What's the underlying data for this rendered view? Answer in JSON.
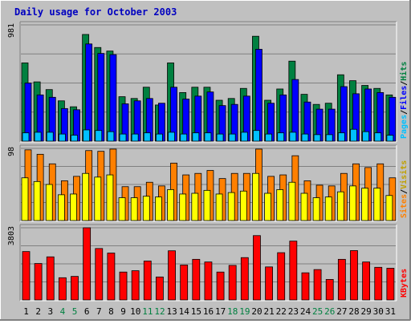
{
  "title": "Daily usage for October 2003",
  "colors": {
    "background": "#c0c0c0",
    "title": "#0000c0",
    "hits": "#008040",
    "files": "#0000ff",
    "pages": "#00c0ff",
    "visits": "#ffff00",
    "sites": "#ff8000",
    "kbytes": "#ff0000",
    "weekend_label": "#008040"
  },
  "chart_data": [
    {
      "type": "bar",
      "name": "hits-files-pages",
      "ymax_label": "981",
      "ylim": [
        0,
        981
      ],
      "categories": [
        "1",
        "2",
        "3",
        "4",
        "5",
        "6",
        "7",
        "8",
        "9",
        "10",
        "11",
        "12",
        "13",
        "14",
        "15",
        "16",
        "17",
        "18",
        "19",
        "20",
        "21",
        "22",
        "23",
        "24",
        "25",
        "26",
        "27",
        "28",
        "29",
        "30",
        "31"
      ],
      "weekend_days": [
        4,
        5,
        11,
        12,
        18,
        19,
        25,
        26
      ],
      "legend": [
        "Pages",
        "/",
        "Files",
        "/",
        "Hits"
      ],
      "series": [
        {
          "name": "Hits",
          "color": "#008040",
          "values": [
            660,
            500,
            435,
            340,
            290,
            900,
            790,
            760,
            375,
            360,
            455,
            305,
            660,
            410,
            455,
            455,
            345,
            360,
            445,
            885,
            345,
            440,
            675,
            395,
            310,
            320,
            560,
            510,
            470,
            445,
            390
          ]
        },
        {
          "name": "Files",
          "color": "#0000ff",
          "values": [
            490,
            390,
            370,
            275,
            265,
            820,
            740,
            730,
            315,
            340,
            360,
            320,
            455,
            355,
            380,
            415,
            300,
            310,
            380,
            775,
            320,
            390,
            520,
            330,
            270,
            270,
            460,
            400,
            440,
            410,
            370
          ]
        },
        {
          "name": "Pages",
          "color": "#00c0ff",
          "values": [
            70,
            75,
            75,
            60,
            50,
            95,
            90,
            80,
            60,
            60,
            70,
            60,
            75,
            60,
            70,
            70,
            60,
            60,
            75,
            90,
            60,
            70,
            75,
            60,
            55,
            55,
            70,
            100,
            80,
            70,
            50
          ]
        }
      ]
    },
    {
      "type": "bar",
      "name": "visits-sites",
      "ymax_label": "98",
      "ylim": [
        0,
        98
      ],
      "legend": [
        "Sites",
        "/",
        "Visits"
      ],
      "series": [
        {
          "name": "Sites",
          "color": "#ff8000",
          "values": [
            96,
            90,
            77,
            54,
            60,
            95,
            94,
            97,
            46,
            46,
            52,
            47,
            78,
            62,
            64,
            68,
            57,
            64,
            64,
            97,
            60,
            62,
            88,
            54,
            48,
            47,
            64,
            77,
            72,
            77,
            58
          ]
        },
        {
          "name": "Visits",
          "color": "#ffff00",
          "values": [
            58,
            53,
            49,
            35,
            36,
            64,
            59,
            62,
            31,
            31,
            33,
            32,
            42,
            36,
            37,
            41,
            36,
            38,
            40,
            64,
            37,
            42,
            52,
            37,
            31,
            32,
            39,
            47,
            44,
            44,
            34
          ]
        }
      ]
    },
    {
      "type": "bar",
      "name": "kbytes",
      "ymax_label": "3803",
      "ylim": [
        0,
        3803
      ],
      "legend": [
        "KBytes"
      ],
      "series": [
        {
          "name": "KBytes",
          "color": "#ff0000",
          "values": [
            2550,
            1920,
            2270,
            1170,
            1240,
            3803,
            2710,
            2470,
            1470,
            1540,
            2050,
            1210,
            2590,
            1840,
            2140,
            2000,
            1470,
            1820,
            2230,
            3390,
            1740,
            2490,
            3100,
            1430,
            1600,
            1080,
            2140,
            2600,
            2000,
            1720,
            1670
          ]
        }
      ]
    }
  ]
}
